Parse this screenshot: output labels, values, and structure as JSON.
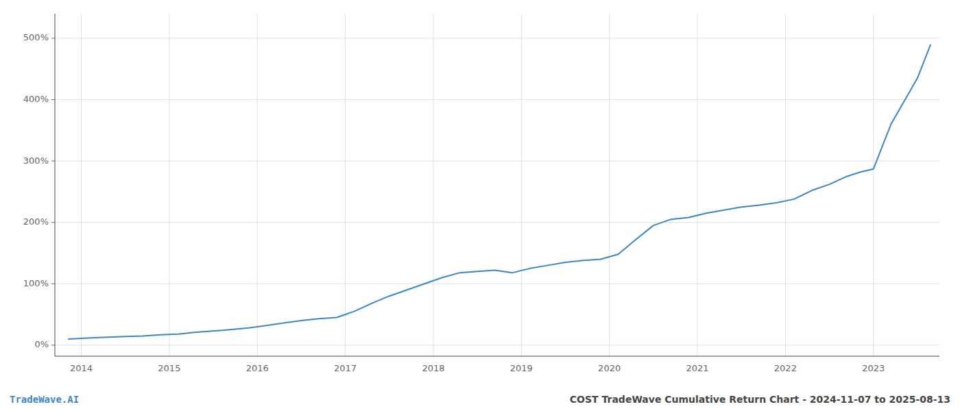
{
  "chart_data": {
    "type": "line",
    "title": "COST TradeWave Cumulative Return Chart - 2024-11-07 to 2025-08-13",
    "annotations": [
      "TradeWave.AI"
    ],
    "color": "#3a86c8",
    "grid": true,
    "x": [
      2013.85,
      2014.0,
      2014.15,
      2014.3,
      2014.5,
      2014.7,
      2014.9,
      2015.1,
      2015.3,
      2015.6,
      2015.9,
      2016.1,
      2016.3,
      2016.5,
      2016.7,
      2016.9,
      2017.1,
      2017.3,
      2017.5,
      2017.7,
      2017.9,
      2018.1,
      2018.3,
      2018.5,
      2018.7,
      2018.9,
      2019.1,
      2019.3,
      2019.5,
      2019.7,
      2019.9,
      2020.1,
      2020.3,
      2020.5,
      2020.7,
      2020.9,
      2021.1,
      2021.3,
      2021.5,
      2021.7,
      2021.9,
      2022.1,
      2022.3,
      2022.5,
      2022.7,
      2022.85,
      2023.0,
      2023.2,
      2023.5,
      2023.65
    ],
    "values": [
      10,
      11,
      12,
      13,
      14,
      15,
      17,
      18,
      21,
      24,
      28,
      32,
      36,
      40,
      43,
      45,
      55,
      68,
      80,
      90,
      100,
      110,
      118,
      120,
      122,
      118,
      125,
      130,
      135,
      138,
      140,
      148,
      172,
      195,
      205,
      208,
      215,
      220,
      225,
      228,
      232,
      238,
      252,
      262,
      275,
      282,
      287,
      360,
      435,
      490
    ],
    "xlim": [
      2013.7,
      2023.75
    ],
    "xticks": [
      2014,
      2015,
      2016,
      2017,
      2018,
      2019,
      2020,
      2021,
      2022,
      2023
    ],
    "ylim": [
      -18,
      540
    ],
    "yticks": [
      {
        "value": 0,
        "label": "0%"
      },
      {
        "value": 100,
        "label": "100%"
      },
      {
        "value": 200,
        "label": "200%"
      },
      {
        "value": 300,
        "label": "300%"
      },
      {
        "value": 400,
        "label": "400%"
      },
      {
        "value": 500,
        "label": "500%"
      }
    ]
  }
}
